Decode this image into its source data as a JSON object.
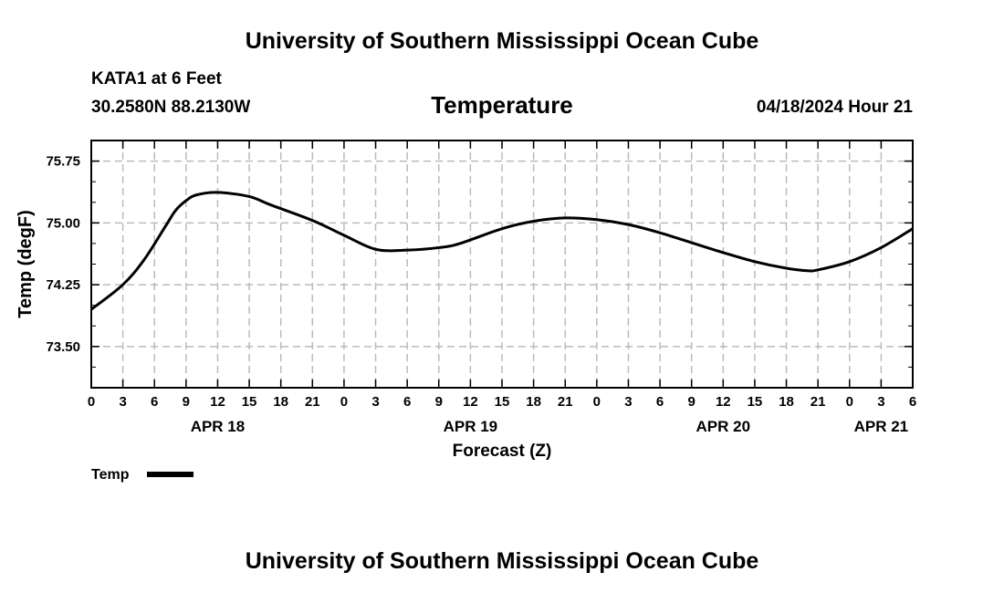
{
  "page": {
    "header_title": "University of Southern Mississippi Ocean Cube",
    "footer_title": "University of Southern Mississippi Ocean Cube",
    "station_line": "KATA1 at 6 Feet",
    "coords_line": "30.2580N  88.2130W",
    "datetime_line": "04/18/2024 Hour 21"
  },
  "colors": {
    "line": "#000000",
    "grid": "#bbbbbb",
    "background": "#ffffff"
  },
  "chart_data": {
    "type": "line",
    "title": "Temperature",
    "xlabel": "Forecast (Z)",
    "ylabel": "Temp (degF)",
    "ylim": [
      73.0,
      76.0
    ],
    "yticks": [
      "73.50",
      "74.25",
      "75.00",
      "75.75"
    ],
    "ytick_values": [
      73.5,
      74.25,
      75.0,
      75.75
    ],
    "x_unit": "hours from 00Z Apr 18",
    "xlim": [
      0,
      78
    ],
    "x_tick_labels": [
      "0",
      "3",
      "6",
      "9",
      "12",
      "15",
      "18",
      "21",
      "0",
      "3",
      "6",
      "9",
      "12",
      "15",
      "18",
      "21",
      "0",
      "3",
      "6",
      "9",
      "12",
      "15",
      "18",
      "21",
      "0",
      "3",
      "6"
    ],
    "date_labels": [
      {
        "text": "APR 18",
        "hour": 12
      },
      {
        "text": "APR 19",
        "hour": 36
      },
      {
        "text": "APR 20",
        "hour": 60
      },
      {
        "text": "APR 21",
        "hour": 75
      }
    ],
    "grid": true,
    "series": [
      {
        "name": "Temp",
        "x": [
          0,
          3,
          5,
          7,
          8,
          9,
          10,
          12,
          15,
          17,
          21,
          24,
          27,
          30,
          33,
          35,
          39,
          42,
          45,
          48,
          51,
          54,
          57,
          60,
          63,
          66,
          68,
          69,
          72,
          75,
          78
        ],
        "values": [
          73.95,
          74.25,
          74.55,
          74.95,
          75.15,
          75.27,
          75.34,
          75.37,
          75.32,
          75.22,
          75.03,
          74.85,
          74.68,
          74.67,
          74.7,
          74.75,
          74.93,
          75.02,
          75.06,
          75.04,
          74.98,
          74.88,
          74.76,
          74.64,
          74.53,
          74.45,
          74.42,
          74.43,
          74.53,
          74.7,
          74.93
        ]
      }
    ],
    "legend": {
      "label": "Temp",
      "position": "bottom-left"
    }
  }
}
